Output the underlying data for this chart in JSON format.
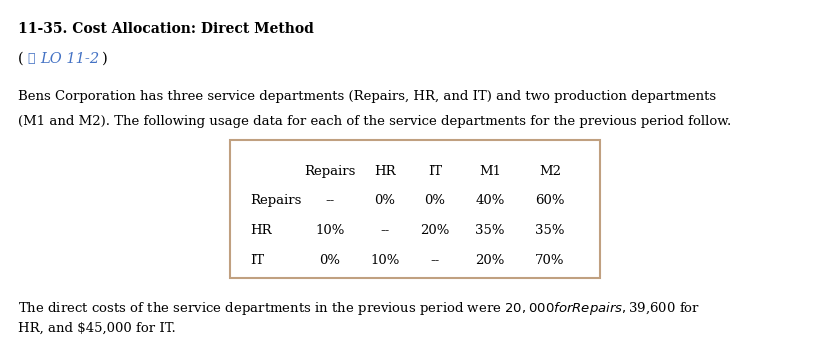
{
  "title_line1": "11-35. Cost Allocation: Direct Method",
  "lo_prefix": "(⎘ LO 11-2)",
  "para1_line1": "Bens Corporation has three service departments (Repairs, HR, and IT) and two production departments",
  "para1_line2": "(M1 and M2). The following usage data for each of the service departments for the previous period follow.",
  "table_header": [
    "",
    "Repairs",
    "HR",
    "IT",
    "M1",
    "M2"
  ],
  "table_rows": [
    [
      "Repairs",
      "--",
      "0%",
      "0%",
      "40%",
      "60%"
    ],
    [
      "HR",
      "10%",
      "--",
      "20%",
      "35%",
      "35%"
    ],
    [
      "IT",
      "0%",
      "10%",
      "--",
      "20%",
      "70%"
    ]
  ],
  "para2_line1": "The direct costs of the service departments in the previous period were $20,000 for Repairs, $39,600 for",
  "para2_line2": "HR, and $45,000 for IT.",
  "bg_color": "#ffffff",
  "text_color": "#000000",
  "link_color": "#4472c4",
  "table_border_color": "#c0a080"
}
